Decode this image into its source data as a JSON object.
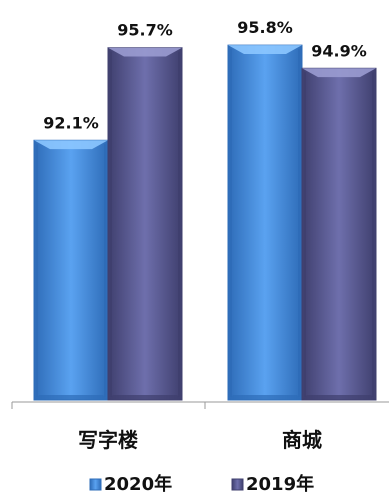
{
  "chart_data": {
    "type": "bar",
    "categories": [
      "写字楼",
      "商城"
    ],
    "series": [
      {
        "name": "2020年",
        "values": [
          92.1,
          95.8
        ],
        "labels": [
          "92.1%",
          "95.8%"
        ],
        "color": "#4a8fe0",
        "edge": "#2e6cb8",
        "light": "#8cc6ff"
      },
      {
        "name": "2019年",
        "values": [
          95.7,
          94.9
        ],
        "labels": [
          "95.7%",
          "94.9%"
        ],
        "color": "#5b5c96",
        "edge": "#3f3f6e",
        "light": "#9a9bd0"
      }
    ],
    "ylim": [
      82,
      96
    ],
    "legend_position": "bottom",
    "grid": false
  }
}
